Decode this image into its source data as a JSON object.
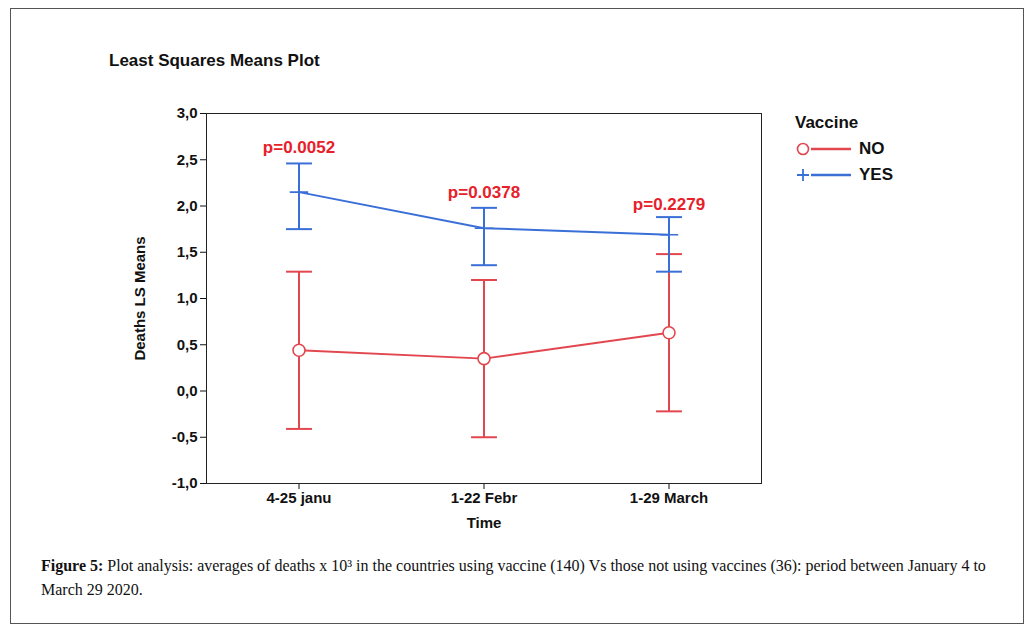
{
  "chart_data": {
    "type": "line",
    "title": "Least Squares Means Plot",
    "x_label": "Time",
    "y_label": "Deaths LS Means",
    "legend_title": "Vaccine",
    "legend": "right",
    "categories": [
      "4-25 janu",
      "1-22 Febr",
      "1-29 March"
    ],
    "ylim": [
      -1,
      3
    ],
    "yticks": [
      {
        "value": -1,
        "label": "-1,0"
      },
      {
        "value": -0.5,
        "label": "-0,5"
      },
      {
        "value": 0,
        "label": "0,0"
      },
      {
        "value": 0.5,
        "label": "0,5"
      },
      {
        "value": 1,
        "label": "1,0"
      },
      {
        "value": 1.5,
        "label": "1,5"
      },
      {
        "value": 2,
        "label": "2,0"
      },
      {
        "value": 2.5,
        "label": "2,5"
      },
      {
        "value": 3,
        "label": "3,0"
      }
    ],
    "series": [
      {
        "name": "NO",
        "color": "#e2474f",
        "marker": "circle",
        "values": [
          0.44,
          0.35,
          0.63
        ],
        "error_lower": [
          -0.41,
          -0.5,
          -0.22
        ],
        "error_upper": [
          1.29,
          1.2,
          1.48
        ]
      },
      {
        "name": "YES",
        "color": "#3a6fd8",
        "marker": "plus",
        "values": [
          2.15,
          1.76,
          1.69
        ],
        "error_lower": [
          1.75,
          1.36,
          1.29
        ],
        "error_upper": [
          2.46,
          1.98,
          1.88
        ]
      }
    ],
    "annotations": [
      {
        "text": "p=0.0052",
        "x": "4-25 janu",
        "y": 2.63,
        "color": "#e8202a"
      },
      {
        "text": "p=0.0378",
        "x": "1-22 Febr",
        "y": 2.15,
        "color": "#e8202a"
      },
      {
        "text": "p=0.2279",
        "x": "1-29 March",
        "y": 2.02,
        "color": "#e8202a"
      }
    ],
    "figure_label": "Figure 5:",
    "caption": "Plot analysis: averages of deaths x 10³ in the countries using vaccine (140) Vs those not using vaccines (36): period between January 4 to March 29 2020."
  }
}
